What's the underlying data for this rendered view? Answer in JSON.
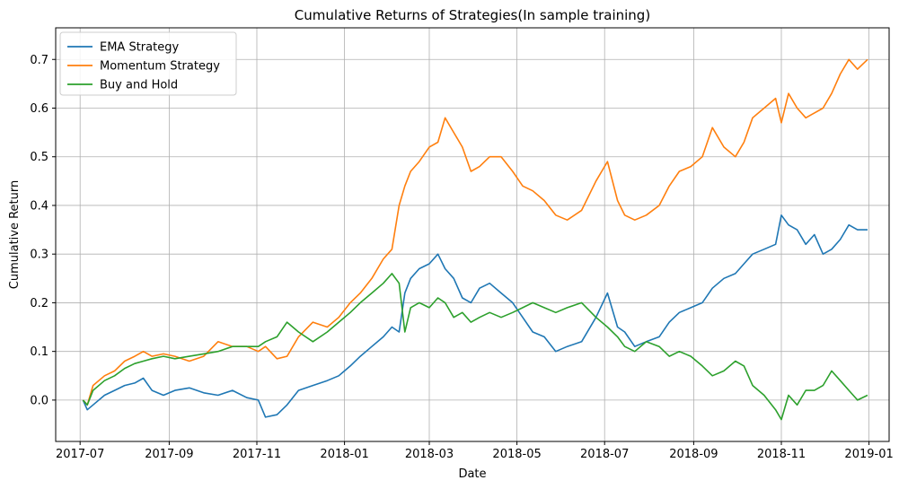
{
  "chart_data": {
    "type": "line",
    "title": "Cumulative Returns of Strategies(In sample training)",
    "xlabel": "Date",
    "ylabel": "Cumulative Return",
    "x_range": [
      "2017-06-14",
      "2019-01-15"
    ],
    "xlim": [
      "2017-06-14",
      "2019-01-15"
    ],
    "ylim": [
      -0.085,
      0.765
    ],
    "grid": true,
    "legend_position": "top-left",
    "x_ticks": [
      "2017-07",
      "2017-09",
      "2017-11",
      "2018-01",
      "2018-03",
      "2018-05",
      "2018-07",
      "2018-09",
      "2018-11",
      "2019-01"
    ],
    "y_ticks": [
      "0.0",
      "0.1",
      "0.2",
      "0.3",
      "0.4",
      "0.5",
      "0.6",
      "0.7"
    ],
    "series": [
      {
        "name": "EMA Strategy",
        "color": "#1f77b4",
        "points": [
          [
            "2017-07-03",
            0.0
          ],
          [
            "2017-07-06",
            -0.02
          ],
          [
            "2017-07-10",
            -0.01
          ],
          [
            "2017-07-18",
            0.01
          ],
          [
            "2017-07-25",
            0.02
          ],
          [
            "2017-08-01",
            0.03
          ],
          [
            "2017-08-08",
            0.035
          ],
          [
            "2017-08-14",
            0.045
          ],
          [
            "2017-08-20",
            0.02
          ],
          [
            "2017-08-28",
            0.01
          ],
          [
            "2017-09-05",
            0.02
          ],
          [
            "2017-09-15",
            0.025
          ],
          [
            "2017-09-25",
            0.015
          ],
          [
            "2017-10-05",
            0.01
          ],
          [
            "2017-10-15",
            0.02
          ],
          [
            "2017-10-25",
            0.005
          ],
          [
            "2017-11-02",
            0.0
          ],
          [
            "2017-11-07",
            -0.035
          ],
          [
            "2017-11-15",
            -0.03
          ],
          [
            "2017-11-22",
            -0.01
          ],
          [
            "2017-11-30",
            0.02
          ],
          [
            "2017-12-10",
            0.03
          ],
          [
            "2017-12-20",
            0.04
          ],
          [
            "2017-12-28",
            0.05
          ],
          [
            "2018-01-05",
            0.07
          ],
          [
            "2018-01-12",
            0.09
          ],
          [
            "2018-01-20",
            0.11
          ],
          [
            "2018-01-28",
            0.13
          ],
          [
            "2018-02-03",
            0.15
          ],
          [
            "2018-02-08",
            0.14
          ],
          [
            "2018-02-12",
            0.22
          ],
          [
            "2018-02-16",
            0.25
          ],
          [
            "2018-02-22",
            0.27
          ],
          [
            "2018-03-01",
            0.28
          ],
          [
            "2018-03-07",
            0.3
          ],
          [
            "2018-03-12",
            0.27
          ],
          [
            "2018-03-18",
            0.25
          ],
          [
            "2018-03-24",
            0.21
          ],
          [
            "2018-03-30",
            0.2
          ],
          [
            "2018-04-05",
            0.23
          ],
          [
            "2018-04-12",
            0.24
          ],
          [
            "2018-04-20",
            0.22
          ],
          [
            "2018-04-28",
            0.2
          ],
          [
            "2018-05-05",
            0.17
          ],
          [
            "2018-05-12",
            0.14
          ],
          [
            "2018-05-20",
            0.13
          ],
          [
            "2018-05-28",
            0.1
          ],
          [
            "2018-06-05",
            0.11
          ],
          [
            "2018-06-15",
            0.12
          ],
          [
            "2018-06-25",
            0.17
          ],
          [
            "2018-07-03",
            0.22
          ],
          [
            "2018-07-10",
            0.15
          ],
          [
            "2018-07-15",
            0.14
          ],
          [
            "2018-07-22",
            0.11
          ],
          [
            "2018-07-30",
            0.12
          ],
          [
            "2018-08-08",
            0.13
          ],
          [
            "2018-08-15",
            0.16
          ],
          [
            "2018-08-22",
            0.18
          ],
          [
            "2018-08-30",
            0.19
          ],
          [
            "2018-09-07",
            0.2
          ],
          [
            "2018-09-14",
            0.23
          ],
          [
            "2018-09-22",
            0.25
          ],
          [
            "2018-09-30",
            0.26
          ],
          [
            "2018-10-06",
            0.28
          ],
          [
            "2018-10-12",
            0.3
          ],
          [
            "2018-10-20",
            0.31
          ],
          [
            "2018-10-28",
            0.32
          ],
          [
            "2018-11-01",
            0.38
          ],
          [
            "2018-11-06",
            0.36
          ],
          [
            "2018-11-12",
            0.35
          ],
          [
            "2018-11-18",
            0.32
          ],
          [
            "2018-11-24",
            0.34
          ],
          [
            "2018-11-30",
            0.3
          ],
          [
            "2018-12-06",
            0.31
          ],
          [
            "2018-12-12",
            0.33
          ],
          [
            "2018-12-18",
            0.36
          ],
          [
            "2018-12-24",
            0.35
          ],
          [
            "2018-12-31",
            0.35
          ]
        ]
      },
      {
        "name": "Momentum Strategy",
        "color": "#ff7f0e",
        "points": [
          [
            "2017-07-03",
            0.0
          ],
          [
            "2017-07-06",
            -0.01
          ],
          [
            "2017-07-10",
            0.03
          ],
          [
            "2017-07-18",
            0.05
          ],
          [
            "2017-07-25",
            0.06
          ],
          [
            "2017-08-01",
            0.08
          ],
          [
            "2017-08-08",
            0.09
          ],
          [
            "2017-08-14",
            0.1
          ],
          [
            "2017-08-20",
            0.09
          ],
          [
            "2017-08-28",
            0.095
          ],
          [
            "2017-09-05",
            0.09
          ],
          [
            "2017-09-15",
            0.08
          ],
          [
            "2017-09-25",
            0.09
          ],
          [
            "2017-10-05",
            0.12
          ],
          [
            "2017-10-15",
            0.11
          ],
          [
            "2017-10-25",
            0.11
          ],
          [
            "2017-11-02",
            0.1
          ],
          [
            "2017-11-07",
            0.11
          ],
          [
            "2017-11-15",
            0.085
          ],
          [
            "2017-11-22",
            0.09
          ],
          [
            "2017-11-30",
            0.13
          ],
          [
            "2017-12-10",
            0.16
          ],
          [
            "2017-12-20",
            0.15
          ],
          [
            "2017-12-28",
            0.17
          ],
          [
            "2018-01-05",
            0.2
          ],
          [
            "2018-01-12",
            0.22
          ],
          [
            "2018-01-20",
            0.25
          ],
          [
            "2018-01-28",
            0.29
          ],
          [
            "2018-02-03",
            0.31
          ],
          [
            "2018-02-08",
            0.4
          ],
          [
            "2018-02-12",
            0.44
          ],
          [
            "2018-02-16",
            0.47
          ],
          [
            "2018-02-22",
            0.49
          ],
          [
            "2018-03-01",
            0.52
          ],
          [
            "2018-03-07",
            0.53
          ],
          [
            "2018-03-12",
            0.58
          ],
          [
            "2018-03-18",
            0.55
          ],
          [
            "2018-03-24",
            0.52
          ],
          [
            "2018-03-30",
            0.47
          ],
          [
            "2018-04-05",
            0.48
          ],
          [
            "2018-04-12",
            0.5
          ],
          [
            "2018-04-20",
            0.5
          ],
          [
            "2018-04-28",
            0.47
          ],
          [
            "2018-05-05",
            0.44
          ],
          [
            "2018-05-12",
            0.43
          ],
          [
            "2018-05-20",
            0.41
          ],
          [
            "2018-05-28",
            0.38
          ],
          [
            "2018-06-05",
            0.37
          ],
          [
            "2018-06-15",
            0.39
          ],
          [
            "2018-06-25",
            0.45
          ],
          [
            "2018-07-03",
            0.49
          ],
          [
            "2018-07-10",
            0.41
          ],
          [
            "2018-07-15",
            0.38
          ],
          [
            "2018-07-22",
            0.37
          ],
          [
            "2018-07-30",
            0.38
          ],
          [
            "2018-08-08",
            0.4
          ],
          [
            "2018-08-15",
            0.44
          ],
          [
            "2018-08-22",
            0.47
          ],
          [
            "2018-08-30",
            0.48
          ],
          [
            "2018-09-07",
            0.5
          ],
          [
            "2018-09-14",
            0.56
          ],
          [
            "2018-09-22",
            0.52
          ],
          [
            "2018-09-30",
            0.5
          ],
          [
            "2018-10-06",
            0.53
          ],
          [
            "2018-10-12",
            0.58
          ],
          [
            "2018-10-20",
            0.6
          ],
          [
            "2018-10-28",
            0.62
          ],
          [
            "2018-11-01",
            0.57
          ],
          [
            "2018-11-06",
            0.63
          ],
          [
            "2018-11-12",
            0.6
          ],
          [
            "2018-11-18",
            0.58
          ],
          [
            "2018-11-24",
            0.59
          ],
          [
            "2018-11-30",
            0.6
          ],
          [
            "2018-12-06",
            0.63
          ],
          [
            "2018-12-12",
            0.67
          ],
          [
            "2018-12-18",
            0.7
          ],
          [
            "2018-12-24",
            0.68
          ],
          [
            "2018-12-31",
            0.7
          ]
        ]
      },
      {
        "name": "Buy and Hold",
        "color": "#2ca02c",
        "points": [
          [
            "2017-07-03",
            0.0
          ],
          [
            "2017-07-06",
            -0.01
          ],
          [
            "2017-07-10",
            0.02
          ],
          [
            "2017-07-18",
            0.04
          ],
          [
            "2017-07-25",
            0.05
          ],
          [
            "2017-08-01",
            0.065
          ],
          [
            "2017-08-08",
            0.075
          ],
          [
            "2017-08-14",
            0.08
          ],
          [
            "2017-08-20",
            0.085
          ],
          [
            "2017-08-28",
            0.09
          ],
          [
            "2017-09-05",
            0.085
          ],
          [
            "2017-09-15",
            0.09
          ],
          [
            "2017-09-25",
            0.095
          ],
          [
            "2017-10-05",
            0.1
          ],
          [
            "2017-10-15",
            0.11
          ],
          [
            "2017-10-25",
            0.11
          ],
          [
            "2017-11-02",
            0.11
          ],
          [
            "2017-11-07",
            0.12
          ],
          [
            "2017-11-15",
            0.13
          ],
          [
            "2017-11-22",
            0.16
          ],
          [
            "2017-11-30",
            0.14
          ],
          [
            "2017-12-10",
            0.12
          ],
          [
            "2017-12-20",
            0.14
          ],
          [
            "2017-12-28",
            0.16
          ],
          [
            "2018-01-05",
            0.18
          ],
          [
            "2018-01-12",
            0.2
          ],
          [
            "2018-01-20",
            0.22
          ],
          [
            "2018-01-28",
            0.24
          ],
          [
            "2018-02-03",
            0.26
          ],
          [
            "2018-02-08",
            0.24
          ],
          [
            "2018-02-12",
            0.14
          ],
          [
            "2018-02-16",
            0.19
          ],
          [
            "2018-02-22",
            0.2
          ],
          [
            "2018-03-01",
            0.19
          ],
          [
            "2018-03-07",
            0.21
          ],
          [
            "2018-03-12",
            0.2
          ],
          [
            "2018-03-18",
            0.17
          ],
          [
            "2018-03-24",
            0.18
          ],
          [
            "2018-03-30",
            0.16
          ],
          [
            "2018-04-05",
            0.17
          ],
          [
            "2018-04-12",
            0.18
          ],
          [
            "2018-04-20",
            0.17
          ],
          [
            "2018-04-28",
            0.18
          ],
          [
            "2018-05-05",
            0.19
          ],
          [
            "2018-05-12",
            0.2
          ],
          [
            "2018-05-20",
            0.19
          ],
          [
            "2018-05-28",
            0.18
          ],
          [
            "2018-06-05",
            0.19
          ],
          [
            "2018-06-15",
            0.2
          ],
          [
            "2018-06-25",
            0.17
          ],
          [
            "2018-07-03",
            0.15
          ],
          [
            "2018-07-10",
            0.13
          ],
          [
            "2018-07-15",
            0.11
          ],
          [
            "2018-07-22",
            0.1
          ],
          [
            "2018-07-30",
            0.12
          ],
          [
            "2018-08-08",
            0.11
          ],
          [
            "2018-08-15",
            0.09
          ],
          [
            "2018-08-22",
            0.1
          ],
          [
            "2018-08-30",
            0.09
          ],
          [
            "2018-09-07",
            0.07
          ],
          [
            "2018-09-14",
            0.05
          ],
          [
            "2018-09-22",
            0.06
          ],
          [
            "2018-09-30",
            0.08
          ],
          [
            "2018-10-06",
            0.07
          ],
          [
            "2018-10-12",
            0.03
          ],
          [
            "2018-10-20",
            0.01
          ],
          [
            "2018-10-28",
            -0.02
          ],
          [
            "2018-11-01",
            -0.04
          ],
          [
            "2018-11-06",
            0.01
          ],
          [
            "2018-11-12",
            -0.01
          ],
          [
            "2018-11-18",
            0.02
          ],
          [
            "2018-11-24",
            0.02
          ],
          [
            "2018-11-30",
            0.03
          ],
          [
            "2018-12-06",
            0.06
          ],
          [
            "2018-12-12",
            0.04
          ],
          [
            "2018-12-18",
            0.02
          ],
          [
            "2018-12-24",
            0.0
          ],
          [
            "2018-12-31",
            0.01
          ]
        ]
      }
    ]
  }
}
